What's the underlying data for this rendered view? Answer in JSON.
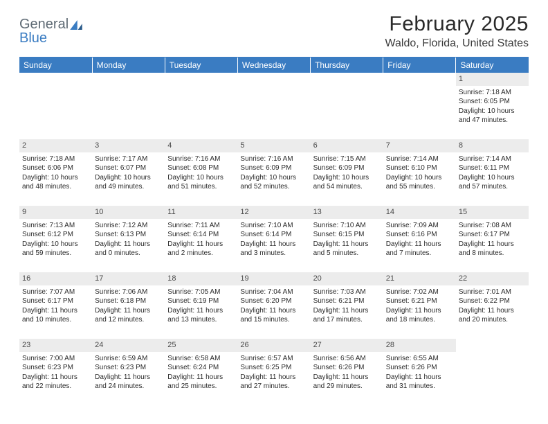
{
  "logo": {
    "part1": "General",
    "part2": "Blue"
  },
  "title": "February 2025",
  "location": "Waldo, Florida, United States",
  "header_color": "#3a7cc2",
  "daynum_bg": "#ececec",
  "text_color": "#2a2a2a",
  "days_of_week": [
    "Sunday",
    "Monday",
    "Tuesday",
    "Wednesday",
    "Thursday",
    "Friday",
    "Saturday"
  ],
  "weeks": [
    [
      null,
      null,
      null,
      null,
      null,
      null,
      {
        "num": "1",
        "sunrise": "Sunrise: 7:18 AM",
        "sunset": "Sunset: 6:05 PM",
        "daylight1": "Daylight: 10 hours",
        "daylight2": "and 47 minutes."
      }
    ],
    [
      {
        "num": "2",
        "sunrise": "Sunrise: 7:18 AM",
        "sunset": "Sunset: 6:06 PM",
        "daylight1": "Daylight: 10 hours",
        "daylight2": "and 48 minutes."
      },
      {
        "num": "3",
        "sunrise": "Sunrise: 7:17 AM",
        "sunset": "Sunset: 6:07 PM",
        "daylight1": "Daylight: 10 hours",
        "daylight2": "and 49 minutes."
      },
      {
        "num": "4",
        "sunrise": "Sunrise: 7:16 AM",
        "sunset": "Sunset: 6:08 PM",
        "daylight1": "Daylight: 10 hours",
        "daylight2": "and 51 minutes."
      },
      {
        "num": "5",
        "sunrise": "Sunrise: 7:16 AM",
        "sunset": "Sunset: 6:09 PM",
        "daylight1": "Daylight: 10 hours",
        "daylight2": "and 52 minutes."
      },
      {
        "num": "6",
        "sunrise": "Sunrise: 7:15 AM",
        "sunset": "Sunset: 6:09 PM",
        "daylight1": "Daylight: 10 hours",
        "daylight2": "and 54 minutes."
      },
      {
        "num": "7",
        "sunrise": "Sunrise: 7:14 AM",
        "sunset": "Sunset: 6:10 PM",
        "daylight1": "Daylight: 10 hours",
        "daylight2": "and 55 minutes."
      },
      {
        "num": "8",
        "sunrise": "Sunrise: 7:14 AM",
        "sunset": "Sunset: 6:11 PM",
        "daylight1": "Daylight: 10 hours",
        "daylight2": "and 57 minutes."
      }
    ],
    [
      {
        "num": "9",
        "sunrise": "Sunrise: 7:13 AM",
        "sunset": "Sunset: 6:12 PM",
        "daylight1": "Daylight: 10 hours",
        "daylight2": "and 59 minutes."
      },
      {
        "num": "10",
        "sunrise": "Sunrise: 7:12 AM",
        "sunset": "Sunset: 6:13 PM",
        "daylight1": "Daylight: 11 hours",
        "daylight2": "and 0 minutes."
      },
      {
        "num": "11",
        "sunrise": "Sunrise: 7:11 AM",
        "sunset": "Sunset: 6:14 PM",
        "daylight1": "Daylight: 11 hours",
        "daylight2": "and 2 minutes."
      },
      {
        "num": "12",
        "sunrise": "Sunrise: 7:10 AM",
        "sunset": "Sunset: 6:14 PM",
        "daylight1": "Daylight: 11 hours",
        "daylight2": "and 3 minutes."
      },
      {
        "num": "13",
        "sunrise": "Sunrise: 7:10 AM",
        "sunset": "Sunset: 6:15 PM",
        "daylight1": "Daylight: 11 hours",
        "daylight2": "and 5 minutes."
      },
      {
        "num": "14",
        "sunrise": "Sunrise: 7:09 AM",
        "sunset": "Sunset: 6:16 PM",
        "daylight1": "Daylight: 11 hours",
        "daylight2": "and 7 minutes."
      },
      {
        "num": "15",
        "sunrise": "Sunrise: 7:08 AM",
        "sunset": "Sunset: 6:17 PM",
        "daylight1": "Daylight: 11 hours",
        "daylight2": "and 8 minutes."
      }
    ],
    [
      {
        "num": "16",
        "sunrise": "Sunrise: 7:07 AM",
        "sunset": "Sunset: 6:17 PM",
        "daylight1": "Daylight: 11 hours",
        "daylight2": "and 10 minutes."
      },
      {
        "num": "17",
        "sunrise": "Sunrise: 7:06 AM",
        "sunset": "Sunset: 6:18 PM",
        "daylight1": "Daylight: 11 hours",
        "daylight2": "and 12 minutes."
      },
      {
        "num": "18",
        "sunrise": "Sunrise: 7:05 AM",
        "sunset": "Sunset: 6:19 PM",
        "daylight1": "Daylight: 11 hours",
        "daylight2": "and 13 minutes."
      },
      {
        "num": "19",
        "sunrise": "Sunrise: 7:04 AM",
        "sunset": "Sunset: 6:20 PM",
        "daylight1": "Daylight: 11 hours",
        "daylight2": "and 15 minutes."
      },
      {
        "num": "20",
        "sunrise": "Sunrise: 7:03 AM",
        "sunset": "Sunset: 6:21 PM",
        "daylight1": "Daylight: 11 hours",
        "daylight2": "and 17 minutes."
      },
      {
        "num": "21",
        "sunrise": "Sunrise: 7:02 AM",
        "sunset": "Sunset: 6:21 PM",
        "daylight1": "Daylight: 11 hours",
        "daylight2": "and 18 minutes."
      },
      {
        "num": "22",
        "sunrise": "Sunrise: 7:01 AM",
        "sunset": "Sunset: 6:22 PM",
        "daylight1": "Daylight: 11 hours",
        "daylight2": "and 20 minutes."
      }
    ],
    [
      {
        "num": "23",
        "sunrise": "Sunrise: 7:00 AM",
        "sunset": "Sunset: 6:23 PM",
        "daylight1": "Daylight: 11 hours",
        "daylight2": "and 22 minutes."
      },
      {
        "num": "24",
        "sunrise": "Sunrise: 6:59 AM",
        "sunset": "Sunset: 6:23 PM",
        "daylight1": "Daylight: 11 hours",
        "daylight2": "and 24 minutes."
      },
      {
        "num": "25",
        "sunrise": "Sunrise: 6:58 AM",
        "sunset": "Sunset: 6:24 PM",
        "daylight1": "Daylight: 11 hours",
        "daylight2": "and 25 minutes."
      },
      {
        "num": "26",
        "sunrise": "Sunrise: 6:57 AM",
        "sunset": "Sunset: 6:25 PM",
        "daylight1": "Daylight: 11 hours",
        "daylight2": "and 27 minutes."
      },
      {
        "num": "27",
        "sunrise": "Sunrise: 6:56 AM",
        "sunset": "Sunset: 6:26 PM",
        "daylight1": "Daylight: 11 hours",
        "daylight2": "and 29 minutes."
      },
      {
        "num": "28",
        "sunrise": "Sunrise: 6:55 AM",
        "sunset": "Sunset: 6:26 PM",
        "daylight1": "Daylight: 11 hours",
        "daylight2": "and 31 minutes."
      },
      null
    ]
  ]
}
